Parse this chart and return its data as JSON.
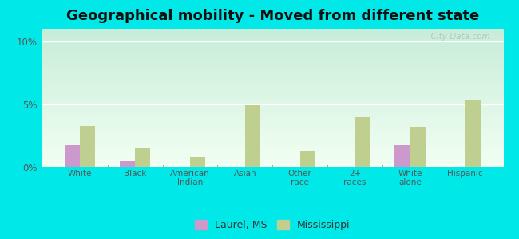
{
  "title": "Geographical mobility - Moved from different state",
  "categories": [
    "White",
    "Black",
    "American\nIndian",
    "Asian",
    "Other\nrace",
    "2+\nraces",
    "White\nalone",
    "Hispanic"
  ],
  "laurel_values": [
    1.8,
    0.5,
    0.0,
    0.0,
    0.0,
    0.0,
    1.8,
    0.0
  ],
  "mississippi_values": [
    3.3,
    1.5,
    0.8,
    4.9,
    1.3,
    4.0,
    3.2,
    5.3
  ],
  "laurel_color": "#cc99cc",
  "mississippi_color": "#bfcf8f",
  "bg_color": "#00e8e8",
  "plot_bg": "#e0f0e0",
  "ylim": [
    0,
    11
  ],
  "yticks": [
    0,
    5,
    10
  ],
  "ytick_labels": [
    "0%",
    "5%",
    "10%"
  ],
  "title_fontsize": 13,
  "legend_laurel": "Laurel, MS",
  "legend_mississippi": "Mississippi",
  "watermark": "  City-Data.com"
}
